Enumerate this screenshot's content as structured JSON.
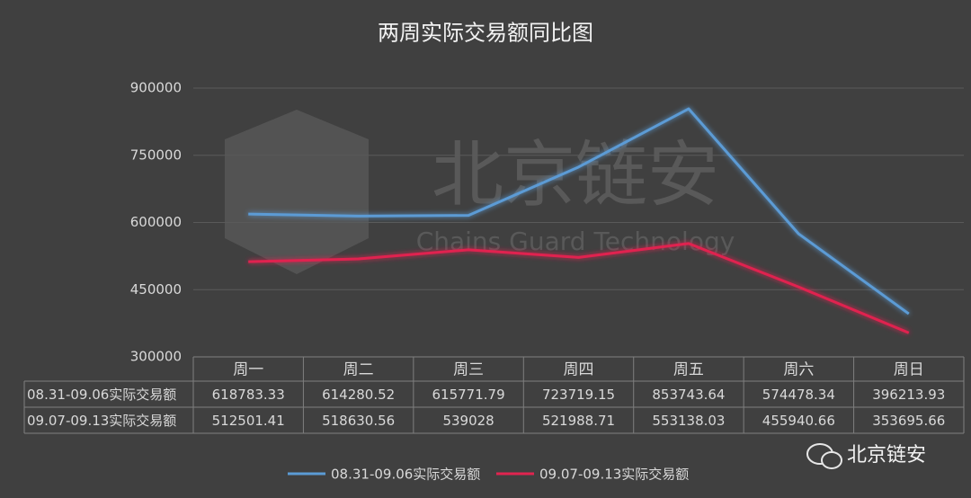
{
  "chart_data": {
    "type": "line",
    "title": "两周实际交易额同比图",
    "categories": [
      "周一",
      "周二",
      "周三",
      "周四",
      "周五",
      "周六",
      "周日"
    ],
    "series": [
      {
        "name": "08.31-09.06实际交易额",
        "color": "#5b9bd5",
        "values": [
          618783.33,
          614280.52,
          615771.79,
          723719.15,
          853743.64,
          574478.34,
          396213.93
        ]
      },
      {
        "name": "09.07-09.13实际交易额",
        "color": "#e0244f",
        "values": [
          512501.41,
          518630.56,
          539028,
          521988.71,
          553138.03,
          455940.66,
          353695.66
        ]
      }
    ],
    "ylim": [
      300000,
      900000
    ],
    "yticks": [
      300000,
      450000,
      600000,
      750000,
      900000
    ],
    "grid": true,
    "legend": "bottom"
  },
  "watermark": {
    "name": "北京链安",
    "subtitle": "Chains Guard Technology"
  },
  "logo": "北京链安"
}
